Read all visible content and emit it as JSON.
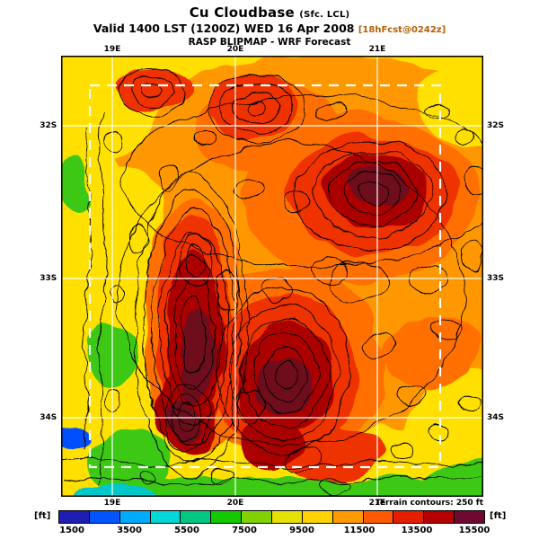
{
  "header": {
    "title": "Cu Cloudbase",
    "title_suffix": "(Sfc. LCL)",
    "valid_line": "Valid 1400 LST (1200Z) WED 16 Apr 2008",
    "forecast_tag": "[18hFcst@0242z]",
    "forecast_tag_color": "#b45f06",
    "model_line": "RASP BLIPMAP - WRF Forecast"
  },
  "map": {
    "lon_labels": [
      "19E",
      "20E",
      "21E"
    ],
    "lat_labels": [
      "32S",
      "33S",
      "34S"
    ]
  },
  "colorbar": {
    "unit_left": "[ft]",
    "unit_right": "[ft]",
    "terrain_note": "Terrain contours: 250 ft",
    "tick_labels": [
      "1500",
      "3500",
      "5500",
      "7500",
      "9500",
      "11500",
      "13500",
      "15500"
    ],
    "colors": [
      "#1e1eb4",
      "#0055ff",
      "#00aaff",
      "#00d7d7",
      "#00c882",
      "#14c800",
      "#82d200",
      "#e6e100",
      "#ffd200",
      "#ff9b00",
      "#ff5a00",
      "#e61e00",
      "#b40000",
      "#6e0a32"
    ]
  }
}
